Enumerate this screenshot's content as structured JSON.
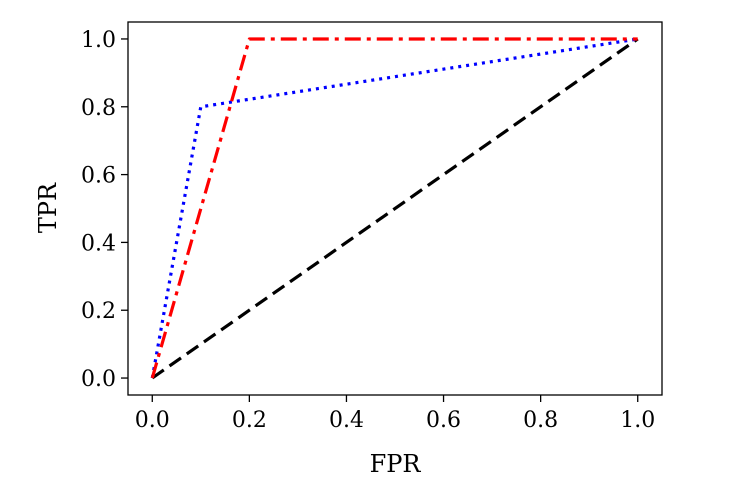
{
  "chart_data": {
    "type": "line",
    "title": "",
    "xlabel": "FPR",
    "ylabel": "TPR",
    "xlim": [
      -0.05,
      1.05
    ],
    "ylim": [
      -0.05,
      1.05
    ],
    "x_ticks": [
      "0.0",
      "0.2",
      "0.4",
      "0.6",
      "0.8",
      "1.0"
    ],
    "y_ticks": [
      "0.0",
      "0.2",
      "0.4",
      "0.6",
      "0.8",
      "1.0"
    ],
    "grid": false,
    "legend": "none",
    "series": [
      {
        "x": [
          0,
          1
        ],
        "y": [
          0,
          1
        ],
        "color": "#000000",
        "style": "dashed"
      },
      {
        "x": [
          0,
          0.1,
          1
        ],
        "y": [
          0,
          0.8,
          1
        ],
        "color": "#0000ff",
        "style": "dotted"
      },
      {
        "x": [
          0,
          0.2,
          1
        ],
        "y": [
          0,
          1,
          1
        ],
        "color": "#ff0000",
        "style": "dashdot"
      }
    ]
  }
}
